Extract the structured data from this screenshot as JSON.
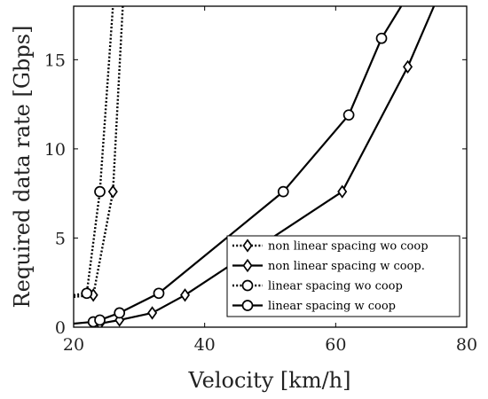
{
  "chart_data": {
    "type": "line",
    "xlabel": "Velocity [km/h]",
    "ylabel": "Required data rate [Gbps]",
    "xlim": [
      20,
      80
    ],
    "ylim": [
      0,
      18
    ],
    "xticks": [
      20,
      40,
      60,
      80
    ],
    "yticks": [
      0,
      5,
      10,
      15
    ],
    "grid": false,
    "legend_placement": "bottom-right",
    "series": [
      {
        "name": "non linear spacing wo coop",
        "style": "dotted",
        "marker": "diamond",
        "color": "#000000",
        "x": [
          20,
          23,
          26,
          27.5
        ],
        "y": [
          1.7,
          1.8,
          7.6,
          18
        ],
        "marker_x": [
          23,
          26
        ],
        "marker_y": [
          1.8,
          7.6
        ]
      },
      {
        "name": "non linear spacing w coop.",
        "style": "solid",
        "marker": "diamond",
        "color": "#000000",
        "x": [
          24,
          27,
          32,
          37,
          61,
          71,
          75
        ],
        "y": [
          0.2,
          0.4,
          0.8,
          1.8,
          7.6,
          14.6,
          18
        ],
        "marker_x": [
          24,
          27,
          32,
          37,
          61,
          71
        ],
        "marker_y": [
          0.2,
          0.4,
          0.8,
          1.8,
          7.6,
          14.6
        ]
      },
      {
        "name": "linear spacing wo coop",
        "style": "dotted",
        "marker": "circle",
        "color": "#000000",
        "x": [
          20,
          22,
          24,
          26
        ],
        "y": [
          1.8,
          1.9,
          7.6,
          18
        ],
        "marker_x": [
          22,
          24
        ],
        "marker_y": [
          1.9,
          7.6
        ]
      },
      {
        "name": "linear spacing w coop",
        "style": "solid",
        "marker": "circle",
        "color": "#000000",
        "x": [
          20,
          23,
          24,
          27,
          33,
          52,
          62,
          67,
          70
        ],
        "y": [
          0.2,
          0.3,
          0.4,
          0.8,
          1.9,
          7.6,
          11.9,
          16.2,
          18
        ],
        "marker_x": [
          23,
          24,
          27,
          33,
          52,
          62,
          67
        ],
        "marker_y": [
          0.3,
          0.4,
          0.8,
          1.9,
          7.6,
          11.9,
          16.2
        ]
      }
    ]
  }
}
